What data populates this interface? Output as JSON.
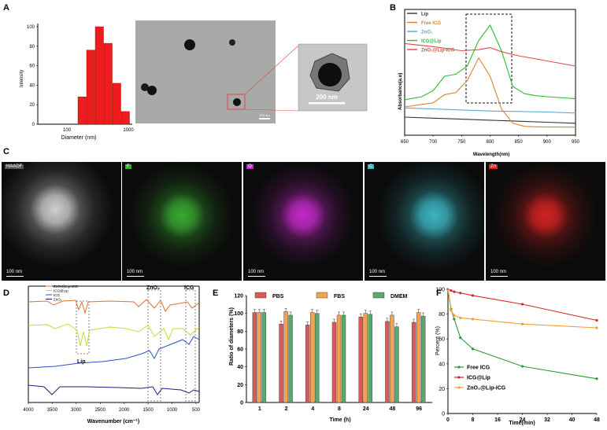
{
  "panels": {
    "A": "A",
    "B": "B",
    "C": "C",
    "D": "D",
    "E": "E",
    "F": "F"
  },
  "panel_A": {
    "ylabel": "Intensity",
    "xlabel": "Diameter (nm)",
    "yticks": [
      "0",
      "20",
      "40",
      "60",
      "80",
      "100"
    ],
    "xticks": [
      "100",
      "1000"
    ],
    "tem_scale": "200 nm",
    "inset_scale": "200 nm",
    "hist_values": [
      28,
      76,
      100,
      83,
      42,
      13
    ]
  },
  "panel_C": {
    "tiles": [
      {
        "tag": "HAADF",
        "scale": "100 nm",
        "color": "#cfcfcf"
      },
      {
        "tag": "F",
        "scale": "100 nm",
        "color": "#3aa832"
      },
      {
        "tag": "O",
        "scale": "100 nm",
        "color": "#c42ac8"
      },
      {
        "tag": "C",
        "scale": "100 nm",
        "color": "#3bb5c0"
      },
      {
        "tag": "Zn",
        "scale": "100 nm",
        "color": "#d42222"
      }
    ]
  },
  "panel_D": {
    "xlabel": "Wavenumber (cm⁻¹)",
    "labels": {
      "znO2": "ZnO₂",
      "icg": "ICG",
      "lip": "Lip"
    },
    "legend": [
      "ZnO₂@Lip-ICG",
      "ICG@Lip",
      "ICG",
      "ZnO₂"
    ]
  },
  "chart_data": [
    {
      "type": "line",
      "panel": "B",
      "xlabel": "Wavelength(nm)",
      "ylabel": "Absorbance(a.u)",
      "xlim": [
        650,
        950
      ],
      "xticks": [
        650,
        700,
        750,
        800,
        850,
        900,
        950
      ],
      "series": [
        {
          "name": "Lip",
          "color": "#333333",
          "x": [
            650,
            700,
            750,
            800,
            850,
            900,
            950
          ],
          "y": [
            0.1,
            0.09,
            0.08,
            0.07,
            0.06,
            0.05,
            0.04
          ]
        },
        {
          "name": "Free ICG",
          "color": "#d9822b",
          "x": [
            650,
            700,
            720,
            740,
            760,
            780,
            800,
            820,
            840,
            860,
            880,
            900,
            950
          ],
          "y": [
            0.2,
            0.24,
            0.32,
            0.34,
            0.46,
            0.68,
            0.5,
            0.18,
            0.04,
            0.01,
            0.005,
            0.003,
            0.002
          ]
        },
        {
          "name": "ZnO₂",
          "color": "#5aa8d8",
          "x": [
            650,
            700,
            750,
            800,
            850,
            900,
            950
          ],
          "y": [
            0.19,
            0.18,
            0.17,
            0.16,
            0.155,
            0.15,
            0.14
          ]
        },
        {
          "name": "ICG@Lip",
          "color": "#33b833",
          "x": [
            650,
            680,
            700,
            720,
            740,
            760,
            780,
            800,
            820,
            840,
            860,
            880,
            900,
            950
          ],
          "y": [
            0.27,
            0.3,
            0.36,
            0.5,
            0.52,
            0.6,
            0.85,
            1.0,
            0.75,
            0.4,
            0.33,
            0.31,
            0.3,
            0.28
          ]
        },
        {
          "name": "ZnO₂@Lip-ICG",
          "color": "#e04848",
          "x": [
            650,
            700,
            750,
            780,
            800,
            820,
            850,
            900,
            950
          ],
          "y": [
            0.82,
            0.79,
            0.75,
            0.76,
            0.78,
            0.74,
            0.7,
            0.65,
            0.6
          ]
        }
      ]
    },
    {
      "type": "bar",
      "panel": "E",
      "xlabel": "Time (h)",
      "ylabel": "Ratio of diameters (%)",
      "ylim": [
        0,
        120
      ],
      "yticks": [
        0,
        20,
        40,
        60,
        80,
        100,
        120
      ],
      "categories": [
        "1",
        "2",
        "4",
        "8",
        "24",
        "48",
        "96"
      ],
      "series": [
        {
          "name": "PBS",
          "color": "#d65a5a",
          "values": [
            101,
            88,
            87,
            90,
            96,
            91,
            90
          ]
        },
        {
          "name": "FBS",
          "color": "#f0a350",
          "values": [
            101,
            102,
            101,
            98,
            100,
            98,
            101
          ]
        },
        {
          "name": "DMEM",
          "color": "#5aa870",
          "values": [
            101,
            98,
            100,
            98,
            99,
            85,
            97
          ]
        }
      ]
    },
    {
      "type": "line",
      "panel": "F",
      "xlabel": "Time(min)",
      "ylabel": "Percent (%)",
      "xlim": [
        0,
        48
      ],
      "ylim": [
        0,
        100
      ],
      "xticks": [
        0,
        8,
        16,
        24,
        32,
        40,
        48
      ],
      "yticks": [
        0,
        20,
        40,
        60,
        80,
        100
      ],
      "series": [
        {
          "name": "Free ICG",
          "color": "#2a9a3a",
          "x": [
            0,
            1,
            2,
            4,
            8,
            24,
            48
          ],
          "y": [
            100,
            84,
            76,
            61,
            52,
            38,
            28
          ]
        },
        {
          "name": "ICG@Lip",
          "color": "#d42a2a",
          "x": [
            0,
            1,
            2,
            4,
            8,
            24,
            48
          ],
          "y": [
            100,
            99,
            98,
            97,
            95,
            88,
            75
          ]
        },
        {
          "name": "ZnO₂@Lip-ICG",
          "color": "#f0a030",
          "x": [
            0,
            1,
            2,
            4,
            8,
            24,
            48
          ],
          "y": [
            100,
            83,
            79,
            77,
            76,
            72,
            69
          ]
        }
      ]
    }
  ]
}
